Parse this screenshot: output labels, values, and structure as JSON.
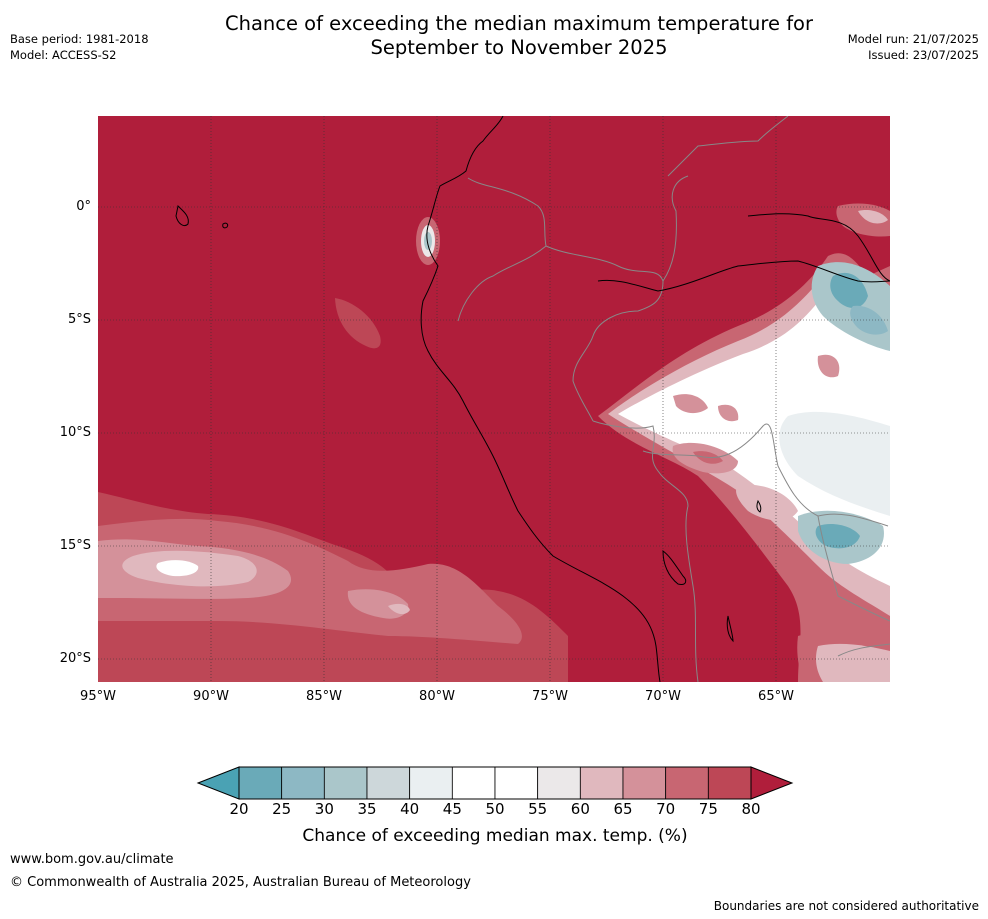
{
  "title_line1": "Chance of exceeding the median maximum temperature for",
  "title_line2": "September to November 2025",
  "base_period": "Base period: 1981-2018",
  "model": "Model: ACCESS-S2",
  "model_run": "Model run: 21/07/2025",
  "issued": "Issued: 23/07/2025",
  "map": {
    "lat_labels": [
      "0°",
      "5°S",
      "10°S",
      "15°S",
      "20°S"
    ],
    "lon_labels": [
      "95°W",
      "90°W",
      "85°W",
      "80°W",
      "75°W",
      "70°W",
      "65°W"
    ],
    "ocean_land_color": "#b01e3b"
  },
  "colorbar": {
    "ticks": [
      "20",
      "25",
      "30",
      "35",
      "40",
      "45",
      "50",
      "55",
      "60",
      "65",
      "70",
      "75",
      "80"
    ],
    "colors": [
      "#6aaab8",
      "#8db8c4",
      "#aac6ca",
      "#cdd7da",
      "#eaeff1",
      "#ffffff",
      "#ffffff",
      "#ebe8e9",
      "#e0b8be",
      "#d4919a",
      "#c86672",
      "#bd4756"
    ],
    "low_extend_color": "#4aa2b4",
    "high_extend_color": "#b01e3b",
    "label": "Chance of exceeding median max. temp. (%)"
  },
  "footer": {
    "url": "www.bom.gov.au/climate",
    "copyright": "© Commonwealth of Australia 2025, Australian Bureau of Meteorology",
    "disclaimer": "Boundaries are not considered authoritative"
  }
}
